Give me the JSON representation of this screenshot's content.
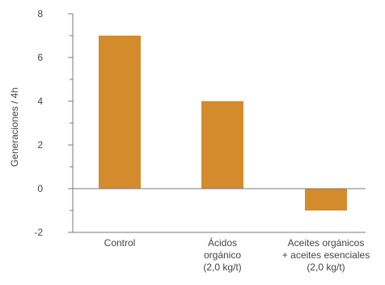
{
  "chart_data": {
    "type": "bar",
    "categories": [
      [
        "Control"
      ],
      [
        "Ácidos",
        "orgánico",
        "(2,0 kg/t)"
      ],
      [
        "Aceites orgánicos",
        "+ aceites esenciales",
        "(2,0 kg/t)"
      ]
    ],
    "values": [
      7,
      4,
      -1
    ],
    "ylabel": "Generaciones / 4h",
    "ylim": [
      -2,
      8
    ],
    "yticks": [
      -2,
      0,
      2,
      4,
      6,
      8
    ],
    "ytick_labels": [
      "-2",
      "0",
      "2",
      "4",
      "6",
      "8"
    ],
    "bar_color": "#d48b2c",
    "axis_color": "#7a7a7a",
    "grid": false,
    "legend": "none"
  }
}
